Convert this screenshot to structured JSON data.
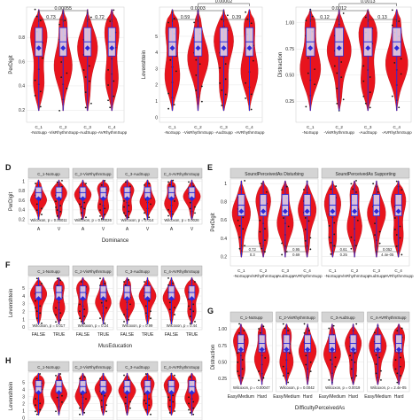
{
  "panel_labels": [
    "D",
    "E",
    "F",
    "G",
    "H"
  ],
  "chart_data": [
    {
      "id": "A",
      "type": "violin",
      "ylabel": "PerDigit",
      "categories": [
        "C_1\n-NoSupp",
        "C_2\n-VisRhythmSupp",
        "C_3\n-AudSupp",
        "C_4\n-AVRhythmSupp"
      ],
      "yticks": [
        0.2,
        0.4,
        0.6,
        0.8
      ],
      "ylim": [
        0.1,
        1.05
      ],
      "means": [
        0.63,
        0.62,
        0.66,
        0.68
      ],
      "medians": [
        0.67,
        0.67,
        0.71,
        0.73
      ],
      "pvalues": [
        "0.73",
        "0.00055",
        "0.72"
      ]
    },
    {
      "id": "B",
      "type": "violin",
      "ylabel": "Levenshtein",
      "categories": [
        "C_1\n-NoSupp",
        "C_2\n-VisRhythmSupp",
        "C_3\n-AudSupp",
        "C_4\n-AVRhythmSupp"
      ],
      "yticks": [
        0,
        1,
        2,
        3,
        4,
        5
      ],
      "ylim": [
        -0.3,
        6.8
      ],
      "means": [
        1.6,
        1.7,
        1.4,
        1.3
      ],
      "medians": [
        2,
        2,
        1,
        1
      ],
      "pvalues": [
        "0.59",
        "0.0003",
        "0.39",
        "0.00002"
      ]
    },
    {
      "id": "C",
      "type": "violin",
      "ylabel": "Distraction",
      "categories": [
        "C_1\n-NoSupp",
        "C_2\n-VisRhythmSupp",
        "C_3\n-AudSupp",
        "C_4\n-AVRhythmSupp"
      ],
      "yticks": [
        0.25,
        0.5,
        0.75,
        1.0
      ],
      "yticklabels": [
        "0.25",
        "0.50",
        "0.75",
        "1.00"
      ],
      "ylim": [
        0.05,
        1.15
      ],
      "means": [
        0.42,
        0.4,
        0.36,
        0.35
      ],
      "medians": [
        0.4,
        0.4,
        0.35,
        0.35
      ],
      "pvalues": [
        "0.12",
        "0.0012",
        "0.13",
        "0.0013"
      ]
    },
    {
      "id": "D",
      "type": "violin",
      "ylabel": "PerDigit",
      "xlabel": "Dominance",
      "facets": [
        "C_1-NoSupp",
        "C_2-VisRhythmSupp",
        "C_3-AudSupp",
        "C_4-AVRhythmSupp"
      ],
      "categories": [
        "A",
        "V"
      ],
      "yticks": [
        0.2,
        0.4,
        0.6,
        0.8,
        1.0
      ],
      "ylim": [
        0.1,
        1.05
      ],
      "stats": [
        "Wilcoxon, p = 0.00011",
        "Wilcoxon, p = 0.00026",
        "Wilcoxon, p = 0.014",
        "Wilcoxon, p = 0.0026"
      ]
    },
    {
      "id": "E",
      "type": "violin",
      "ylabel": "PerDigit",
      "facets": [
        "SoundPerceivedAs Disturbing",
        "SoundPerceivedAs Supporting"
      ],
      "categories": [
        "C_1\n-NoSupp",
        "C_2\n-VisRhythmSupp",
        "C_3\n-AudSupp",
        "C_4\n-AVRhythmSupp"
      ],
      "yticks": [
        0.2,
        0.4,
        0.6,
        0.8,
        1.0
      ],
      "ylim": [
        0.1,
        1.05
      ],
      "pvalues": [
        [
          "0.72",
          "0.3",
          "0.95",
          "0.69"
        ],
        [
          "0.61",
          "0.25",
          "0.052",
          "4.4e-05"
        ]
      ]
    },
    {
      "id": "F",
      "type": "violin",
      "ylabel": "Levenshtein",
      "xlabel": "MusEducation",
      "facets": [
        "C_1-NoSupp",
        "C_2-VisRhythmSupp",
        "C_3-AudSupp",
        "C_4-AVRhythmSupp"
      ],
      "categories": [
        "FALSE",
        "TRUE"
      ],
      "yticks": [
        0,
        1,
        2,
        3,
        4,
        5
      ],
      "ylim": [
        -0.3,
        6.5
      ],
      "stats": [
        "Wilcoxon, p = 0.017",
        "Wilcoxon, p = 0.24",
        "Wilcoxon, p = 0.99",
        "Wilcoxon, p = 0.44"
      ]
    },
    {
      "id": "G",
      "type": "violin",
      "ylabel": "Distraction",
      "xlabel": "DifficultyPerceivedAs",
      "facets": [
        "C_1-NoSupp",
        "C_2-VisRhythmSupp",
        "C_3-AudSupp",
        "C_4-AVRhythmSupp"
      ],
      "categories": [
        "Easy/Medium",
        "Hard"
      ],
      "yticks": [
        0.25,
        0.5,
        0.75,
        1.0
      ],
      "yticklabels": [
        "0.25",
        "0.50",
        "0.75",
        "1.00"
      ],
      "ylim": [
        0.05,
        1.1
      ],
      "stats": [
        "Wilcoxon, p = 0.00047",
        "Wilcoxon, p = 0.0042",
        "Wilcoxon, p = 0.0019",
        "Wilcoxon, p = 2.4e-05"
      ]
    },
    {
      "id": "H",
      "type": "violin",
      "ylabel": "Levenshtein",
      "facets": [
        "C_1-NoSupp",
        "C_2-VisRhythmSupp",
        "C_3-AudSupp",
        "C_4-AVRhythmSupp"
      ],
      "categories": [
        "",
        ""
      ],
      "yticks": [
        0,
        1,
        2,
        3,
        4,
        5
      ],
      "ylim": [
        -0.3,
        6.5
      ]
    }
  ],
  "colors": {
    "violin": "#e8141d",
    "box": "#2a2adc",
    "point": "#1a1a1a",
    "strip": "#d4d4d4",
    "grid": "#e6e6e6"
  }
}
